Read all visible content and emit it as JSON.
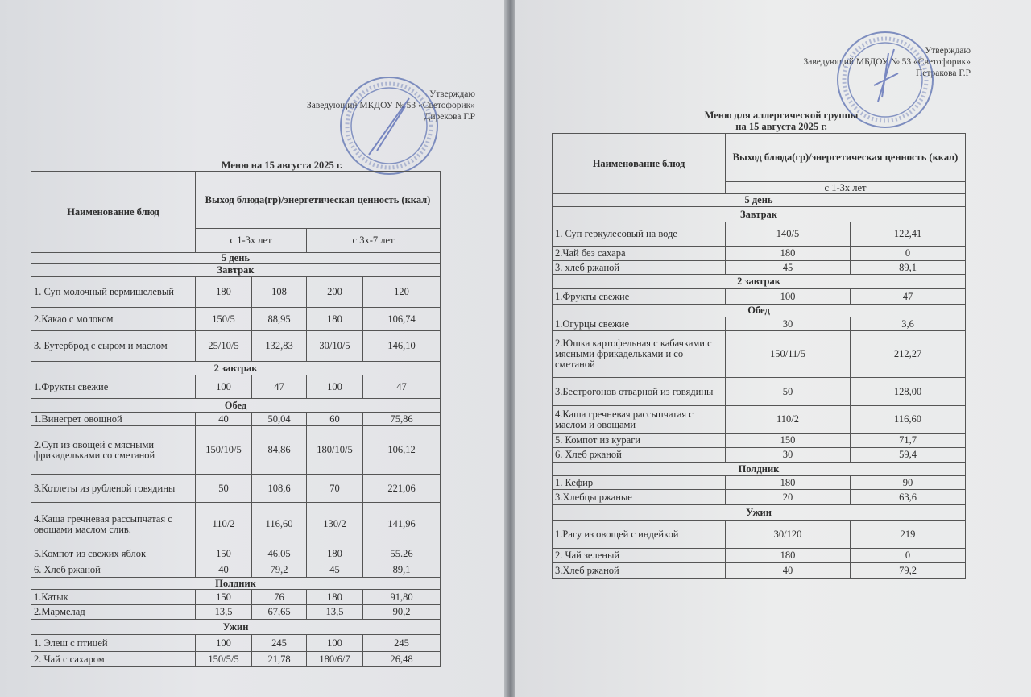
{
  "left": {
    "approve": {
      "line1": "Утверждаю",
      "line2": "Заведующий МКДОУ № 53 «Светофорик»",
      "line3": "Дирекова Г.Р"
    },
    "title": "Меню на 15 августа 2025 г.",
    "header": {
      "name_col": "Наименование блюд",
      "value_col": "Выход блюда(гр)/энергетическая ценность (ккал)",
      "age1": "с 1-3х лет",
      "age2": "с 3х-7 лет"
    },
    "rows": [
      {
        "section": "5  день"
      },
      {
        "section": "Завтрак"
      },
      {
        "name": "1. Суп молочный вермишелевый",
        "v": [
          "180",
          "108",
          "200",
          "120"
        ]
      },
      {
        "name": "2.Какао с молоком",
        "v": [
          "150/5",
          "88,95",
          "180",
          "106,74"
        ]
      },
      {
        "name": "3. Бутерброд с сыром и маслом",
        "v": [
          "25/10/5",
          "132,83",
          "30/10/5",
          "146,10"
        ]
      },
      {
        "section": "2  завтрак"
      },
      {
        "name": "1.Фрукты свежие",
        "v": [
          "100",
          "47",
          "100",
          "47"
        ]
      },
      {
        "section": "Обед"
      },
      {
        "name": "1.Винегрет овощной",
        "v": [
          "40",
          "50,04",
          "60",
          "75,86"
        ]
      },
      {
        "name": "2.Суп из овощей с мясными фрикадельками  со сметаной",
        "v": [
          "150/10/5",
          "84,86",
          "180/10/5",
          "106,12"
        ]
      },
      {
        "name": "3.Котлеты из рубленой говядины",
        "v": [
          "50",
          "108,6",
          "70",
          "221,06"
        ]
      },
      {
        "name": "4.Каша гречневая рассыпчатая с овощами маслом слив.",
        "v": [
          "110/2",
          "116,60",
          "130/2",
          "141,96"
        ]
      },
      {
        "name": "5.Компот из свежих яблок",
        "v": [
          "150",
          "46.05",
          "180",
          "55.26"
        ]
      },
      {
        "name": "6. Хлеб ржаной",
        "v": [
          "40",
          "79,2",
          "45",
          "89,1"
        ]
      },
      {
        "section": "Полдник"
      },
      {
        "name": "1.Катык",
        "v": [
          "150",
          "76",
          "180",
          "91,80"
        ]
      },
      {
        "name": "2.Мармелад",
        "v": [
          "13,5",
          "67,65",
          "13,5",
          "90,2"
        ]
      },
      {
        "section": "Ужин"
      },
      {
        "name": "1. Элеш с птицей",
        "v": [
          "100",
          "245",
          "100",
          "245"
        ]
      },
      {
        "name": "2. Чай с сахаром",
        "v": [
          "150/5/5",
          "21,78",
          "180/6/7",
          "26,48"
        ]
      }
    ]
  },
  "right": {
    "approve": {
      "line1": "Утверждаю",
      "line2": "Заведующий МБДОУ № 53 «Светофорик»",
      "line3": "Петракова Г.Р"
    },
    "title_line1": "Меню для аллергической группы",
    "title_line2": "на 15 августа  2025 г.",
    "header": {
      "name_col": "Наименование блюд",
      "value_col": "Выход блюда(гр)/энергетическая ценность (ккал)",
      "age1": "с 1-3х лет"
    },
    "rows": [
      {
        "section": "5 день"
      },
      {
        "section": "Завтрак"
      },
      {
        "name": "1. Суп геркулесовый на воде",
        "v": [
          "140/5",
          "122,41"
        ]
      },
      {
        "name": "2.Чай без сахара",
        "v": [
          "180",
          "0"
        ]
      },
      {
        "name": "3. хлеб ржаной",
        "v": [
          "45",
          "89,1"
        ]
      },
      {
        "section": "2 завтрак"
      },
      {
        "name": "1.Фрукты свежие",
        "v": [
          "100",
          "47"
        ]
      },
      {
        "section": "Обед"
      },
      {
        "name": "1.Огурцы свежие",
        "v": [
          "30",
          "3,6"
        ]
      },
      {
        "name": "2.Юшка картофельная с кабачками с мясными фрикадельками и со сметаной",
        "v": [
          "150/11/5",
          "212,27"
        ]
      },
      {
        "name": "3.Бестрогонов  отварной из говядины",
        "v": [
          "50",
          "128,00"
        ]
      },
      {
        "name": "4.Каша гречневая рассыпчатая с маслом и овощами",
        "v": [
          "110/2",
          "116,60"
        ]
      },
      {
        "name": "5. Компот из кураги",
        "v": [
          "150",
          "71,7"
        ]
      },
      {
        "name": "6. Хлеб ржаной",
        "v": [
          "30",
          "59,4"
        ]
      },
      {
        "section": "Полдник"
      },
      {
        "name": "1. Кефир",
        "v": [
          "180",
          "90"
        ]
      },
      {
        "name": "3.Хлебцы ржаные",
        "v": [
          "20",
          "63,6"
        ]
      },
      {
        "section": "Ужин"
      },
      {
        "name": "1.Рагу из овощей с индейкой",
        "v": [
          "30/120",
          "219"
        ]
      },
      {
        "name": "2. Чай зеленый",
        "v": [
          "180",
          "0"
        ]
      },
      {
        "name": "3.Хлеб ржаной",
        "v": [
          "40",
          "79,2"
        ]
      }
    ]
  },
  "colors": {
    "stamp": "#5a6fb0",
    "ink": "#2e2e2e"
  }
}
